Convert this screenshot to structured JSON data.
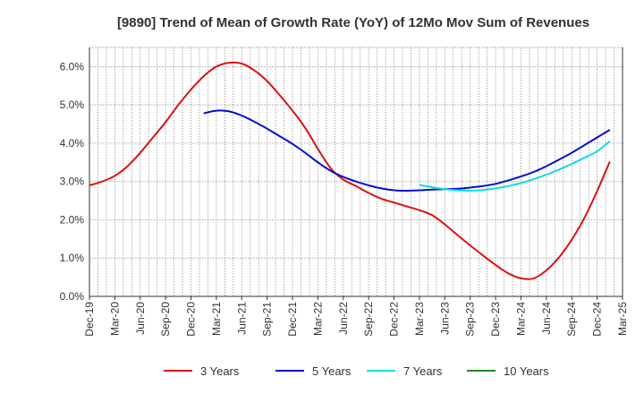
{
  "chart_data": {
    "type": "line",
    "title": "[9890]  Trend of Mean of Growth Rate (YoY) of 12Mo Mov Sum of Revenues",
    "xlabel": "",
    "ylabel": "",
    "ylim": [
      0,
      6.5
    ],
    "y_ticks": [
      0,
      1,
      2,
      3,
      4,
      5,
      6
    ],
    "y_tick_labels": [
      "0.0%",
      "1.0%",
      "2.0%",
      "3.0%",
      "4.0%",
      "5.0%",
      "6.0%"
    ],
    "x_tick_labels": [
      "Dec-19",
      "Mar-20",
      "Jun-20",
      "Sep-20",
      "Dec-20",
      "Mar-21",
      "Jun-21",
      "Sep-21",
      "Dec-21",
      "Mar-22",
      "Jun-22",
      "Sep-22",
      "Dec-22",
      "Mar-23",
      "Jun-23",
      "Sep-23",
      "Dec-23",
      "Mar-24",
      "Jun-24",
      "Sep-24",
      "Dec-24",
      "Mar-25"
    ],
    "grid": true,
    "legend_position": "bottom",
    "series": [
      {
        "name": "3 Years",
        "color": "#dd1111",
        "points": [
          [
            0,
            2.9
          ],
          [
            1,
            3.0
          ],
          [
            2,
            3.15
          ],
          [
            3,
            3.4
          ],
          [
            4,
            3.75
          ],
          [
            5,
            4.15
          ],
          [
            6,
            4.55
          ],
          [
            7,
            5.0
          ],
          [
            8,
            5.4
          ],
          [
            9,
            5.75
          ],
          [
            10,
            6.0
          ],
          [
            11,
            6.1
          ],
          [
            12,
            6.08
          ],
          [
            13,
            5.9
          ],
          [
            14,
            5.62
          ],
          [
            15,
            5.25
          ],
          [
            16,
            4.85
          ],
          [
            17,
            4.4
          ],
          [
            18,
            3.85
          ],
          [
            19,
            3.35
          ],
          [
            20,
            3.05
          ],
          [
            21,
            2.88
          ],
          [
            22,
            2.7
          ],
          [
            23,
            2.55
          ],
          [
            24,
            2.45
          ],
          [
            25,
            2.35
          ],
          [
            26,
            2.25
          ],
          [
            27,
            2.12
          ],
          [
            28,
            1.88
          ],
          [
            29,
            1.6
          ],
          [
            30,
            1.33
          ],
          [
            31,
            1.07
          ],
          [
            32,
            0.82
          ],
          [
            33,
            0.6
          ],
          [
            34,
            0.47
          ],
          [
            35,
            0.47
          ],
          [
            36,
            0.68
          ],
          [
            37,
            1.02
          ],
          [
            38,
            1.48
          ],
          [
            39,
            2.05
          ],
          [
            40,
            2.75
          ],
          [
            41,
            3.52
          ]
        ]
      },
      {
        "name": "5 Years",
        "color": "#0011cc",
        "points": [
          [
            9,
            4.78
          ],
          [
            10,
            4.85
          ],
          [
            11,
            4.83
          ],
          [
            12,
            4.72
          ],
          [
            13,
            4.56
          ],
          [
            14,
            4.38
          ],
          [
            15,
            4.18
          ],
          [
            16,
            3.98
          ],
          [
            17,
            3.75
          ],
          [
            18,
            3.5
          ],
          [
            19,
            3.28
          ],
          [
            20,
            3.12
          ],
          [
            21,
            3.0
          ],
          [
            22,
            2.9
          ],
          [
            23,
            2.82
          ],
          [
            24,
            2.77
          ],
          [
            25,
            2.76
          ],
          [
            26,
            2.77
          ],
          [
            27,
            2.79
          ],
          [
            28,
            2.8
          ],
          [
            29,
            2.81
          ],
          [
            30,
            2.84
          ],
          [
            31,
            2.88
          ],
          [
            32,
            2.94
          ],
          [
            33,
            3.03
          ],
          [
            34,
            3.13
          ],
          [
            35,
            3.25
          ],
          [
            36,
            3.4
          ],
          [
            37,
            3.57
          ],
          [
            38,
            3.75
          ],
          [
            39,
            3.95
          ],
          [
            40,
            4.15
          ],
          [
            41,
            4.35
          ]
        ]
      },
      {
        "name": "7 Years",
        "color": "#11dddd",
        "points": [
          [
            26,
            2.91
          ],
          [
            27,
            2.85
          ],
          [
            28,
            2.8
          ],
          [
            29,
            2.77
          ],
          [
            30,
            2.76
          ],
          [
            31,
            2.78
          ],
          [
            32,
            2.82
          ],
          [
            33,
            2.88
          ],
          [
            34,
            2.96
          ],
          [
            35,
            3.06
          ],
          [
            36,
            3.18
          ],
          [
            37,
            3.31
          ],
          [
            38,
            3.46
          ],
          [
            39,
            3.62
          ],
          [
            40,
            3.79
          ],
          [
            41,
            4.05
          ]
        ]
      },
      {
        "name": "10 Years",
        "color": "#228822",
        "points": []
      }
    ]
  }
}
